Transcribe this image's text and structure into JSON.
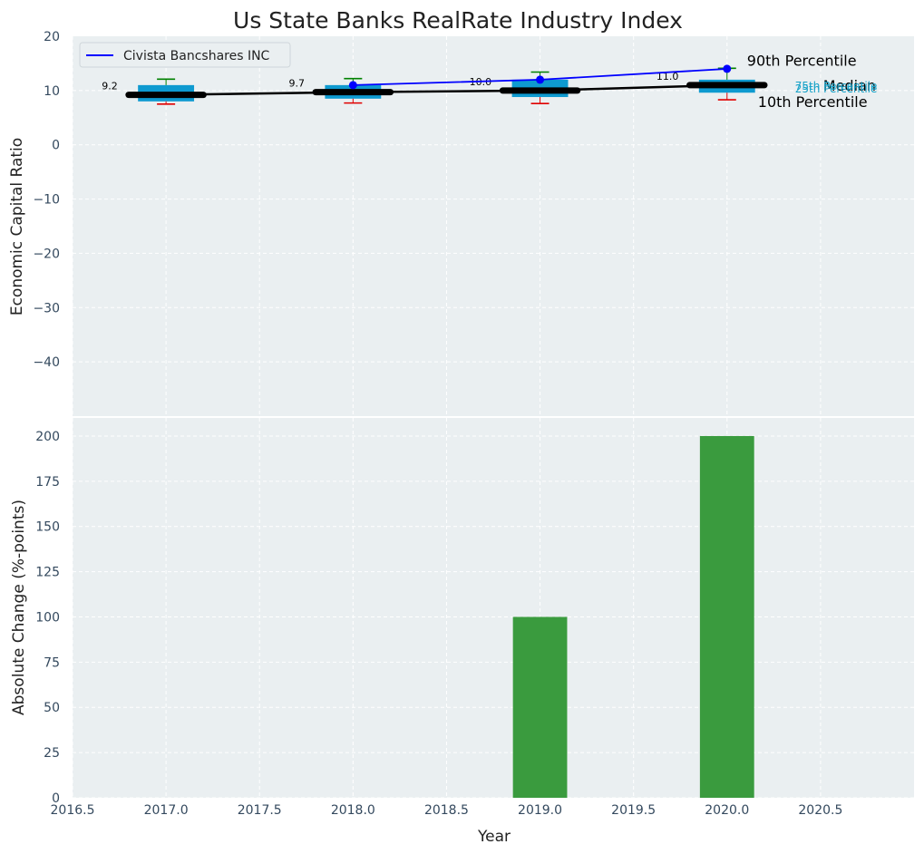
{
  "chart_data": [
    {
      "type": "box",
      "title": "Us State Banks RealRate Industry Index",
      "ylabel": "Economic Capital Ratio",
      "xlim": [
        2016.5,
        2021.0
      ],
      "ylim": [
        -50,
        20
      ],
      "yticks": [
        20,
        10,
        0,
        -10,
        -20,
        -30,
        -40
      ],
      "ytick_labels": [
        "20",
        "10",
        "0",
        "−10",
        "−20",
        "−30",
        "−40"
      ],
      "years": [
        2017,
        2018,
        2019,
        2020
      ],
      "p10": [
        7.5,
        7.7,
        7.6,
        8.3
      ],
      "p25": [
        8.0,
        8.5,
        8.8,
        9.6
      ],
      "median": [
        9.2,
        9.7,
        10.0,
        11.0
      ],
      "p75": [
        11.0,
        11.0,
        12.0,
        12.0
      ],
      "p90": [
        12.1,
        12.2,
        13.4,
        14.1
      ],
      "median_labels": [
        "9.2",
        "9.7",
        "10.0",
        "11.0"
      ],
      "series": [
        {
          "name": "Civista Bancshares INC",
          "x": [
            2018,
            2019,
            2020
          ],
          "values": [
            11.0,
            12.0,
            14.0
          ],
          "color": "#0000ff"
        }
      ],
      "annotations": {
        "p90": "90th Percentile",
        "median": "Median",
        "p10": "10th Percentile",
        "p75": "75th Percentile",
        "p25": "25th Percentile"
      },
      "legend": "top-left",
      "grid": true
    },
    {
      "type": "bar",
      "xlabel": "Year",
      "ylabel": "Absolute Change (%-points)",
      "x": [
        2019,
        2020
      ],
      "values": [
        100,
        200
      ],
      "bar_color": "#3a9b3e",
      "ylim": [
        0,
        210
      ],
      "yticks": [
        0,
        25,
        50,
        75,
        100,
        125,
        150,
        175,
        200
      ],
      "xticks": [
        2016.5,
        2017.0,
        2017.5,
        2018.0,
        2018.5,
        2019.0,
        2019.5,
        2020.0,
        2020.5
      ],
      "xtick_labels": [
        "2016.5",
        "2017.0",
        "2017.5",
        "2018.0",
        "2018.5",
        "2019.0",
        "2019.5",
        "2020.0",
        "2020.5"
      ],
      "grid": true
    }
  ],
  "colors": {
    "panel_bg": "#eaeff1",
    "grid": "#ffffff",
    "box_fill": "#0e9ad0",
    "median_line": "#000000",
    "p90_whisker": "#008000",
    "p10_whisker": "#e00000",
    "company_line": "#0000ff",
    "pct_label": "#17a2c8"
  }
}
